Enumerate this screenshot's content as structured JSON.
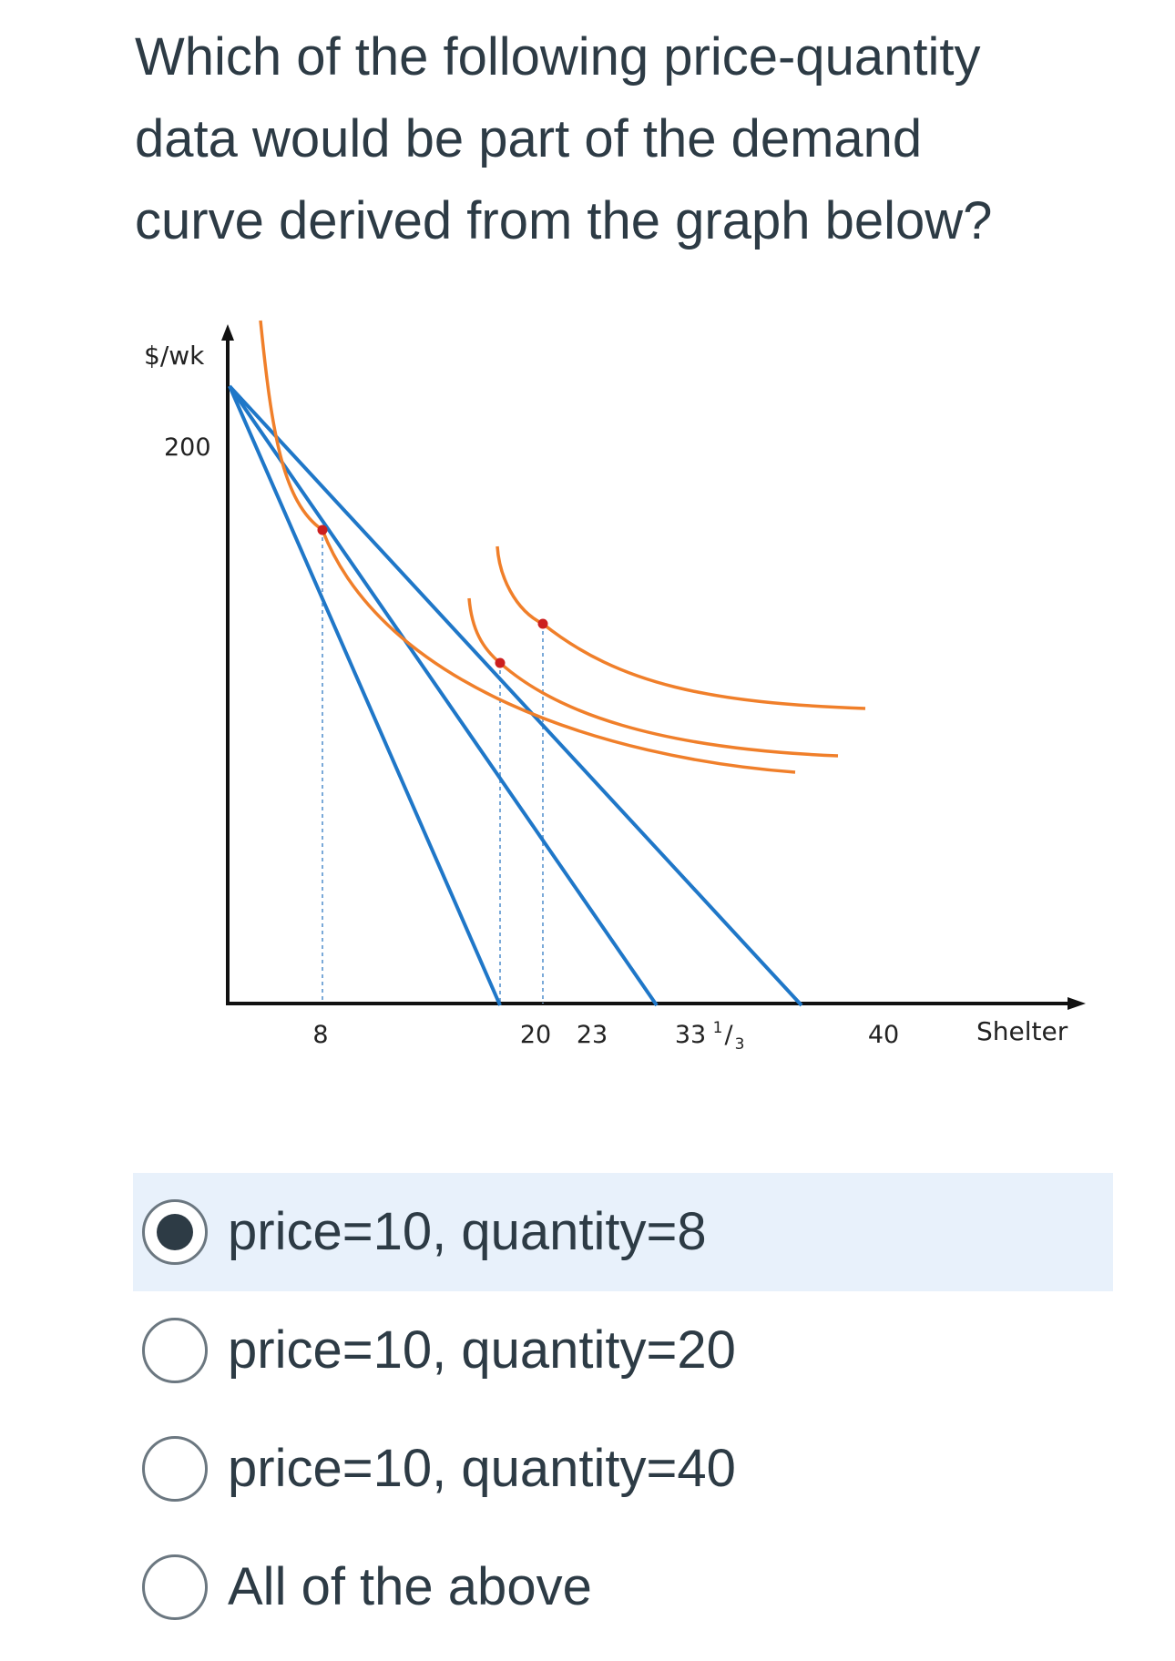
{
  "question": {
    "line1": "Which of the following price-quantity",
    "line2": "data would be part of the demand",
    "line3": "curve derived from the graph below?"
  },
  "graph": {
    "y_axis_label": "$/wk",
    "x_axis_label": "Shelter",
    "y_ticks": [
      "200"
    ],
    "x_ticks": {
      "t8": "8",
      "t20": "20",
      "t23": "23",
      "t33_whole": "33",
      "t33_num": "1",
      "t33_den": "3",
      "t40": "40"
    },
    "line_color": "#1f77c8",
    "curve_color": "#f07f2a",
    "point_color": "#cc1f1f"
  },
  "options": [
    {
      "label": "price=10, quantity=8",
      "selected": true
    },
    {
      "label": "price=10, quantity=20",
      "selected": false
    },
    {
      "label": "price=10, quantity=40",
      "selected": false
    },
    {
      "label": "All of the above",
      "selected": false
    }
  ]
}
